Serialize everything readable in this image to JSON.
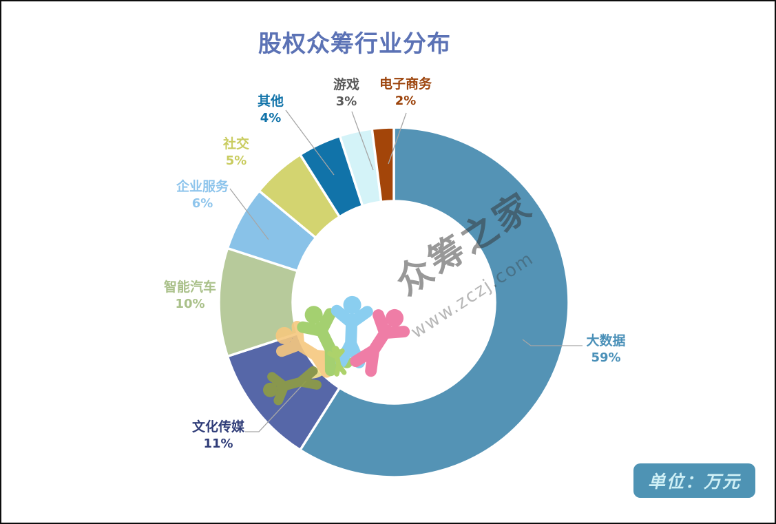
{
  "page": {
    "title": "股权众筹行业分布",
    "unit_badge": "单位：万元"
  },
  "watermark": {
    "brand": "众筹之家",
    "url": "www.zczj.com"
  },
  "colors": {
    "title": "#5B72B5",
    "badge_bg": "#4E93B4",
    "badge_text": "#CFF0F6",
    "leader_line": "#A6A6A6",
    "slice_gap": "#FFFFFF",
    "watermark_text": "#333333"
  },
  "chart_data": {
    "type": "pie",
    "subtype": "donut",
    "title": "股权众筹行业分布",
    "unit": "万元",
    "start_angle_deg": 0,
    "direction": "clockwise",
    "legend_position": "labels-around-slices",
    "categories": [
      "大数据",
      "文化传媒",
      "智能汽车",
      "企业服务",
      "社交",
      "其他",
      "游戏",
      "电子商务"
    ],
    "values": [
      59,
      11,
      10,
      6,
      5,
      4,
      3,
      2
    ],
    "value_suffix": "%",
    "slice_colors": [
      "#5493B5",
      "#5667A8",
      "#B7CA9B",
      "#89C2E8",
      "#D3D470",
      "#1173A9",
      "#D4F3F8",
      "#A34509"
    ],
    "label_colors": [
      "#4A90B8",
      "#2F3C78",
      "#A9C089",
      "#8FC5EC",
      "#C9CC60",
      "#1173A9",
      "#595959",
      "#9C430B"
    ]
  }
}
